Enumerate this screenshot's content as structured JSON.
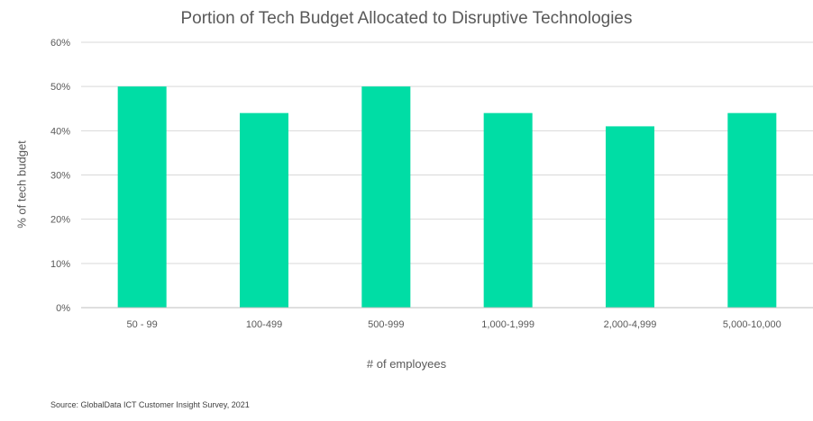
{
  "chart_data": {
    "type": "bar",
    "title": "Portion of Tech Budget Allocated to Disruptive Technologies",
    "xlabel": "# of employees",
    "ylabel": "% of tech budget",
    "categories": [
      "50 - 99",
      "100-499",
      "500-999",
      "1,000-1,999",
      "2,000-4,999",
      "5,000-10,000"
    ],
    "values": [
      50,
      44,
      50,
      44,
      41,
      44
    ],
    "ylim": [
      0,
      60
    ],
    "yticks": [
      "0%",
      "10%",
      "20%",
      "30%",
      "40%",
      "50%",
      "60%"
    ],
    "grid": true,
    "legend": "none",
    "bar_color": "#00DDA5",
    "grid_color": "#D9D9D9",
    "axis_color": "#BFBFBF"
  },
  "source": "Source:  GlobalData ICT Customer Insight Survey, 2021"
}
